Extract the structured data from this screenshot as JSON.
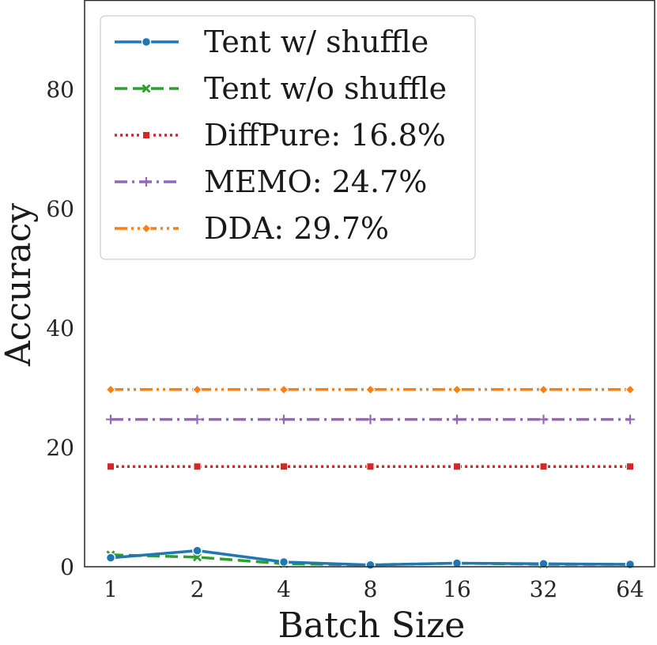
{
  "chart_data": {
    "type": "line",
    "title": "",
    "xlabel": "Batch Size",
    "ylabel": "Accuracy",
    "categories": [
      "1",
      "2",
      "4",
      "8",
      "16",
      "32",
      "64"
    ],
    "ylim": [
      0,
      95
    ],
    "yticks": [
      0,
      20,
      40,
      60,
      80
    ],
    "ytick_labels": [
      "0",
      "20",
      "40",
      "60",
      "80"
    ],
    "grid": false,
    "legend_position": "top-left",
    "series": [
      {
        "name": "Tent w/ shuffle",
        "values": [
          1.5,
          2.7,
          0.8,
          0.3,
          0.6,
          0.5,
          0.4
        ],
        "color": "#1f77b4",
        "dash": "solid",
        "marker": "circle"
      },
      {
        "name": "Tent w/o shuffle",
        "values": [
          2.0,
          1.6,
          0.5,
          0.3,
          0.6,
          0.4,
          0.4
        ],
        "color": "#2ca02c",
        "dash": "dashed",
        "marker": "x"
      },
      {
        "name": "DiffPure: 16.8%",
        "values": [
          16.8,
          16.8,
          16.8,
          16.8,
          16.8,
          16.8,
          16.8
        ],
        "color": "#d62728",
        "dash": "dotted",
        "marker": "square"
      },
      {
        "name": "MEMO: 24.7%",
        "values": [
          24.7,
          24.7,
          24.7,
          24.7,
          24.7,
          24.7,
          24.7
        ],
        "color": "#9467bd",
        "dash": "dashdot",
        "marker": "plus"
      },
      {
        "name": "DDA: 29.7%",
        "values": [
          29.7,
          29.7,
          29.7,
          29.7,
          29.7,
          29.7,
          29.7
        ],
        "color": "#ff7f0e",
        "dash": "dashdotdot",
        "marker": "diamond"
      }
    ]
  }
}
